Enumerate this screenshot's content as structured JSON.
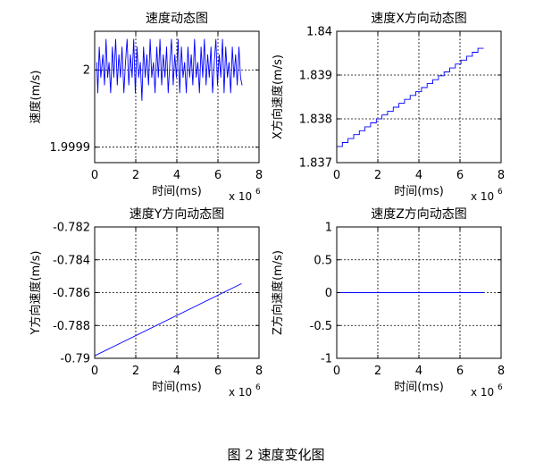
{
  "caption": "图 2  速度变化图",
  "chart_data": [
    {
      "type": "line",
      "title": "速度动态图",
      "xlabel": "时间(ms)",
      "ylabel": "速度(m/s)",
      "x_exponent_label": "x 10",
      "x_exponent": "6",
      "xlim": [
        0,
        8
      ],
      "ylim": [
        1.99988,
        2.00005
      ],
      "xticks": [
        0,
        2,
        4,
        6,
        8
      ],
      "xtick_labels": [
        "0",
        "2",
        "4",
        "6",
        "8"
      ],
      "yticks": [
        1.9999,
        2.0
      ],
      "ytick_labels": [
        "1.9999",
        "2"
      ],
      "grid": true,
      "line_color": "#0000ff",
      "series": [
        {
          "x": [
            0.1,
            0.15,
            0.22,
            0.3,
            0.4,
            0.48,
            0.55,
            0.63,
            0.7,
            0.78,
            0.86,
            0.93,
            1.02,
            1.1,
            1.18,
            1.25,
            1.33,
            1.42,
            1.5,
            1.58,
            1.66,
            1.74,
            1.82,
            1.9,
            1.98,
            2.06,
            2.14,
            2.22,
            2.3,
            2.38,
            2.46,
            2.54,
            2.62,
            2.7,
            2.78,
            2.86,
            2.94,
            3.02,
            3.1,
            3.18,
            3.26,
            3.34,
            3.42,
            3.5,
            3.58,
            3.66,
            3.74,
            3.82,
            3.9,
            3.98,
            4.06,
            4.14,
            4.22,
            4.3,
            4.38,
            4.46,
            4.54,
            4.62,
            4.7,
            4.78,
            4.86,
            4.94,
            5.02,
            5.1,
            5.18,
            5.26,
            5.34,
            5.42,
            5.5,
            5.58,
            5.66,
            5.74,
            5.82,
            5.9,
            5.98,
            6.06,
            6.14,
            6.22,
            6.3,
            6.38,
            6.46,
            6.54,
            6.62,
            6.7,
            6.78,
            6.86,
            6.94,
            7.02,
            7.1,
            7.18
          ],
          "y": [
            2.00001,
            1.99997,
            2.00003,
            1.99999,
            2.00002,
            1.99998,
            2.00004,
            1.99999,
            2.00001,
            1.99997,
            2.00003,
            1.99999,
            2.00004,
            1.99998,
            2.00002,
            1.99999,
            2.00003,
            1.99997,
            2.00001,
            2.00004,
            1.99998,
            2.00002,
            1.99999,
            2.00004,
            1.99997,
            2.00003,
            1.99999,
            2.00001,
            1.99996,
            2.00003,
            1.99999,
            2.00002,
            1.99998,
            2.00004,
            1.99999,
            2.00001,
            1.99997,
            2.00003,
            1.99999,
            2.00004,
            1.99998,
            2.00002,
            1.99999,
            2.00003,
            1.99997,
            2.00001,
            2.00004,
            1.99998,
            2.00002,
            1.99999,
            2.00004,
            1.99997,
            2.00003,
            1.99999,
            2.00001,
            1.99997,
            2.00003,
            1.99999,
            2.00002,
            1.99998,
            2.00004,
            1.99999,
            2.00001,
            1.99997,
            2.00003,
            1.99999,
            2.00004,
            1.99998,
            2.00002,
            1.99999,
            2.00003,
            1.99997,
            2.00001,
            2.00004,
            1.99998,
            2.00002,
            1.99999,
            2.00004,
            1.99997,
            2.00003,
            1.99999,
            2.00001,
            1.99997,
            2.00003,
            1.99999,
            2.00002,
            1.99998,
            2.00003,
            1.99999,
            1.99998
          ]
        }
      ]
    },
    {
      "type": "line",
      "title": "速度X方向动态图",
      "xlabel": "时间(ms)",
      "ylabel": "X方向速度(m/s)",
      "x_exponent_label": "x 10",
      "x_exponent": "6",
      "xlim": [
        0,
        8
      ],
      "ylim": [
        1.837,
        1.84
      ],
      "xticks": [
        0,
        2,
        4,
        6,
        8
      ],
      "xtick_labels": [
        "0",
        "2",
        "4",
        "6",
        "8"
      ],
      "yticks": [
        1.837,
        1.838,
        1.839,
        1.84
      ],
      "ytick_labels": [
        "1.837",
        "1.838",
        "1.839",
        "1.84"
      ],
      "grid": true,
      "line_color": "#0000ff",
      "series": [
        {
          "x": [
            0.0,
            7.15
          ],
          "y": [
            1.83737,
            1.83961
          ],
          "staircase_steps": 26
        }
      ]
    },
    {
      "type": "line",
      "title": "速度Y方向动态图",
      "xlabel": "时间(ms)",
      "ylabel": "Y方向速度(m/s)",
      "x_exponent_label": "x 10",
      "x_exponent": "6",
      "xlim": [
        0,
        8
      ],
      "ylim": [
        -0.79,
        -0.782
      ],
      "xticks": [
        0,
        2,
        4,
        6,
        8
      ],
      "xtick_labels": [
        "0",
        "2",
        "4",
        "6",
        "8"
      ],
      "yticks": [
        -0.79,
        -0.788,
        -0.786,
        -0.784,
        -0.782
      ],
      "ytick_labels": [
        "-0.79",
        "-0.788",
        "-0.786",
        "-0.784",
        "-0.782"
      ],
      "grid": true,
      "line_color": "#0000ff",
      "series": [
        {
          "x": [
            0.0,
            7.15
          ],
          "y": [
            -0.78985,
            -0.78545
          ]
        }
      ]
    },
    {
      "type": "line",
      "title": "速度Z方向动态图",
      "xlabel": "时间(ms)",
      "ylabel": "Z方向速度(m/s)",
      "x_exponent_label": "x 10",
      "x_exponent": "6",
      "xlim": [
        0,
        8
      ],
      "ylim": [
        -1,
        1
      ],
      "xticks": [
        0,
        2,
        4,
        6,
        8
      ],
      "xtick_labels": [
        "0",
        "2",
        "4",
        "6",
        "8"
      ],
      "yticks": [
        -1,
        -0.5,
        0,
        0.5,
        1
      ],
      "ytick_labels": [
        "-1",
        "-0.5",
        "0",
        "0.5",
        "1"
      ],
      "grid": true,
      "line_color": "#0000ff",
      "series": [
        {
          "x": [
            0.0,
            7.15
          ],
          "y": [
            0,
            0
          ]
        }
      ]
    }
  ]
}
